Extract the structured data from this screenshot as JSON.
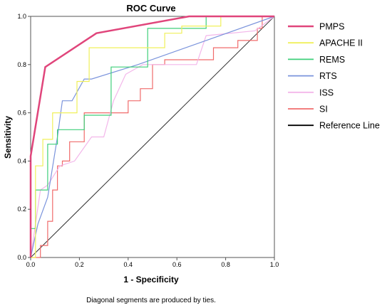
{
  "chart_data": {
    "type": "line",
    "title": "ROC Curve",
    "xlabel": "1 - Specificity",
    "ylabel": "Sensitivity",
    "xlim": [
      0,
      1
    ],
    "ylim": [
      0,
      1
    ],
    "x_ticks": [
      "0.0",
      "0.2",
      "0.4",
      "0.6",
      "0.8",
      "1.0"
    ],
    "y_ticks": [
      "0.0",
      "0.2",
      "0.4",
      "0.6",
      "0.8",
      "1.0"
    ],
    "grid": false,
    "legend_position": "right",
    "footnote": "Diagonal segments are produced by ties.",
    "series": [
      {
        "name": "PMPS",
        "color": "#e0457b",
        "width": 2.5,
        "x": [
          0,
          0,
          0.06,
          0.27,
          0.65,
          1.0
        ],
        "y": [
          0,
          0.42,
          0.79,
          0.93,
          1.0,
          1.0
        ]
      },
      {
        "name": "APACHE II",
        "color": "#f0f05a",
        "width": 1.2,
        "x": [
          0,
          0.02,
          0.05,
          0.09,
          0.13,
          0.19,
          0.24,
          0.45,
          0.55,
          0.62,
          0.78,
          1.0
        ],
        "y": [
          0,
          0.38,
          0.49,
          0.6,
          0.6,
          0.73,
          0.87,
          0.87,
          0.93,
          0.96,
          1.0,
          1.0
        ],
        "step": true
      },
      {
        "name": "REMS",
        "color": "#3fcf7a",
        "width": 1.2,
        "x": [
          0,
          0,
          0.02,
          0.07,
          0.11,
          0.22,
          0.33,
          0.48,
          0.62,
          0.72,
          1.0
        ],
        "y": [
          0,
          0.12,
          0.28,
          0.47,
          0.53,
          0.59,
          0.79,
          0.95,
          0.95,
          1.0,
          1.0
        ],
        "step": true
      },
      {
        "name": "RTS",
        "color": "#7b94dc",
        "width": 1.2,
        "x": [
          0,
          0.03,
          0.07,
          0.11,
          0.13,
          0.17,
          0.22,
          0.25,
          0.44,
          0.72,
          1.0
        ],
        "y": [
          0,
          0.14,
          0.25,
          0.5,
          0.65,
          0.65,
          0.74,
          0.74,
          0.8,
          0.9,
          1.0
        ]
      },
      {
        "name": "ISS",
        "color": "#f3b6ea",
        "width": 1.2,
        "x": [
          0,
          0.04,
          0.07,
          0.12,
          0.18,
          0.25,
          0.3,
          0.34,
          0.39,
          0.46,
          0.56,
          0.68,
          0.72,
          0.92,
          1.0
        ],
        "y": [
          0,
          0.28,
          0.3,
          0.38,
          0.4,
          0.5,
          0.5,
          0.65,
          0.76,
          0.8,
          0.8,
          0.8,
          0.92,
          0.94,
          1.0
        ]
      },
      {
        "name": "SI",
        "color": "#f06b6b",
        "width": 1.2,
        "x": [
          0,
          0.04,
          0.07,
          0.09,
          0.11,
          0.13,
          0.16,
          0.22,
          0.27,
          0.35,
          0.4,
          0.45,
          0.5,
          0.55,
          0.63,
          0.7,
          0.75,
          0.85,
          0.9,
          0.93,
          0.95,
          1.0
        ],
        "y": [
          0,
          0.05,
          0.15,
          0.28,
          0.38,
          0.4,
          0.48,
          0.6,
          0.6,
          0.6,
          0.65,
          0.7,
          0.8,
          0.82,
          0.82,
          0.82,
          0.87,
          0.9,
          0.9,
          0.95,
          1.0,
          1.0
        ],
        "step": true
      },
      {
        "name": "Reference Line",
        "color": "#333333",
        "width": 1.0,
        "x": [
          0,
          1
        ],
        "y": [
          0,
          1
        ],
        "reference": true
      }
    ]
  }
}
